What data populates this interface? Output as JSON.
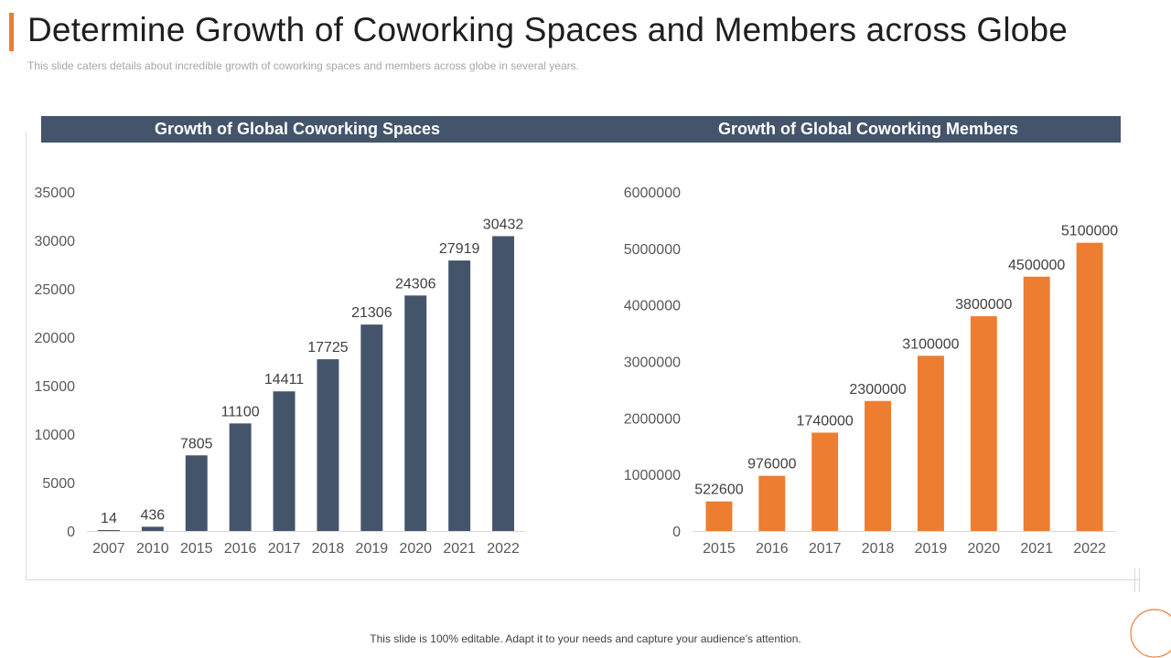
{
  "slide": {
    "title": "Determine Growth of Coworking Spaces and Members across Globe",
    "subtitle": "This slide caters details about incredible growth of coworking spaces and members across globe in several years.",
    "footer": "This slide is 100% editable. Adapt it to your needs and capture your audience’s attention."
  },
  "colors": {
    "accent": "#ED7D31",
    "header_bg": "#44546A",
    "bar_dark": "#44546A",
    "bar_orange": "#ED7D31",
    "text_axis": "#595959",
    "text_label": "#404040"
  },
  "chart_data": [
    {
      "type": "bar",
      "title": "Growth of Global Coworking Spaces",
      "categories": [
        "2007",
        "2010",
        "2015",
        "2016",
        "2017",
        "2018",
        "2019",
        "2020",
        "2021",
        "2022"
      ],
      "values": [
        14,
        436,
        7805,
        11100,
        14411,
        17725,
        21306,
        24306,
        27919,
        30432
      ],
      "yticks": [
        0,
        5000,
        10000,
        15000,
        20000,
        25000,
        30000,
        35000
      ],
      "ylim": [
        0,
        35000
      ],
      "color": "#44546A",
      "xlabel": "",
      "ylabel": "",
      "grid": false,
      "legend": "none"
    },
    {
      "type": "bar",
      "title": "Growth of Global Coworking Members",
      "categories": [
        "2015",
        "2016",
        "2017",
        "2018",
        "2019",
        "2020",
        "2021",
        "2022"
      ],
      "values": [
        522600,
        976000,
        1740000,
        2300000,
        3100000,
        3800000,
        4500000,
        5100000
      ],
      "yticks": [
        0,
        1000000,
        2000000,
        3000000,
        4000000,
        5000000,
        6000000
      ],
      "ylim": [
        0,
        6000000
      ],
      "color": "#ED7D31",
      "xlabel": "",
      "ylabel": "",
      "grid": false,
      "legend": "none"
    }
  ]
}
